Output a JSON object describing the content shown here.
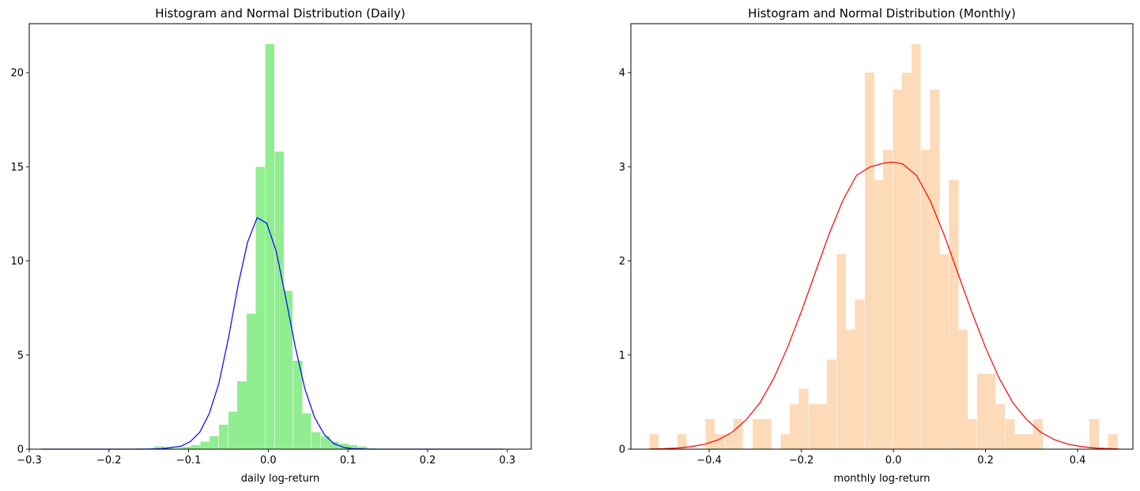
{
  "chart_data": [
    {
      "type": "histogram",
      "title": "Histogram and Normal Distribution (Daily)",
      "xlabel": "daily log-return",
      "ylabel": "",
      "xlim": [
        -0.3,
        0.33
      ],
      "ylim": [
        0,
        22.6
      ],
      "xticks": [
        -0.3,
        -0.2,
        -0.1,
        0.0,
        0.1,
        0.2,
        0.3
      ],
      "xtick_labels": [
        "−0.3",
        "−0.2",
        "−0.1",
        "0.0",
        "0.1",
        "0.2",
        "0.3"
      ],
      "yticks": [
        0,
        5,
        10,
        15,
        20
      ],
      "ytick_labels": [
        "0",
        "5",
        "10",
        "15",
        "20"
      ],
      "bar_color": "#90EE90",
      "curve_color": "#0000ff",
      "bins": {
        "width": 0.0116,
        "starts": [
          -0.166,
          -0.143,
          -0.131,
          -0.12,
          -0.108,
          -0.097,
          -0.085,
          -0.074,
          -0.062,
          -0.05,
          -0.039,
          -0.027,
          -0.016,
          -0.004,
          0.008,
          0.019,
          0.031,
          0.042,
          0.054,
          0.066,
          0.077,
          0.089,
          0.1,
          0.112,
          0.124
        ],
        "values": [
          0.05,
          0.15,
          0.05,
          0.05,
          0.12,
          0.2,
          0.4,
          0.7,
          1.3,
          2.0,
          3.6,
          7.2,
          15.0,
          21.5,
          15.8,
          8.4,
          4.7,
          1.9,
          0.9,
          0.7,
          0.4,
          0.3,
          0.2,
          0.15,
          0.05
        ]
      },
      "normal_curve": {
        "x": [
          -0.285,
          -0.26,
          -0.235,
          -0.21,
          -0.185,
          -0.16,
          -0.135,
          -0.11,
          -0.098,
          -0.086,
          -0.074,
          -0.062,
          -0.05,
          -0.038,
          -0.026,
          -0.014,
          -0.002,
          0.01,
          0.022,
          0.034,
          0.046,
          0.058,
          0.07,
          0.082,
          0.094,
          0.106,
          0.13,
          0.155,
          0.18,
          0.205,
          0.23,
          0.255,
          0.28,
          0.295
        ],
        "y": [
          0,
          0,
          0,
          0,
          0,
          0,
          0.02,
          0.15,
          0.4,
          0.9,
          1.9,
          3.5,
          5.9,
          8.7,
          11.0,
          12.3,
          12.0,
          10.5,
          8.0,
          5.4,
          3.2,
          1.7,
          0.8,
          0.3,
          0.1,
          0.03,
          0,
          0,
          0,
          0,
          0,
          0,
          0,
          0
        ]
      }
    },
    {
      "type": "histogram",
      "title": "Histogram and Normal Distribution (Monthly)",
      "xlabel": "monthly log-return",
      "ylabel": "",
      "xlim": [
        -0.57,
        0.52
      ],
      "ylim": [
        0,
        4.52
      ],
      "xticks": [
        -0.4,
        -0.2,
        0.0,
        0.2,
        0.4
      ],
      "xtick_labels": [
        "−0.4",
        "−0.2",
        "0.0",
        "0.2",
        "0.4"
      ],
      "yticks": [
        0,
        1,
        2,
        3,
        4
      ],
      "ytick_labels": [
        "0",
        "1",
        "2",
        "3",
        "4"
      ],
      "bar_color": "#FDDAB8",
      "curve_color": "#ff0000",
      "bins": {
        "width": 0.0203,
        "starts": [
          -0.53,
          -0.51,
          -0.489,
          -0.469,
          -0.449,
          -0.428,
          -0.408,
          -0.388,
          -0.367,
          -0.347,
          -0.327,
          -0.306,
          -0.286,
          -0.266,
          -0.245,
          -0.225,
          -0.205,
          -0.184,
          -0.164,
          -0.144,
          -0.123,
          -0.103,
          -0.083,
          -0.062,
          -0.042,
          -0.022,
          -0.001,
          0.019,
          0.039,
          0.06,
          0.08,
          0.1,
          0.121,
          0.141,
          0.161,
          0.182,
          0.202,
          0.222,
          0.243,
          0.263,
          0.283,
          0.304,
          0.324,
          0.344,
          0.365,
          0.385,
          0.405,
          0.426,
          0.446,
          0.466
        ],
        "values": [
          0.16,
          0,
          0,
          0.16,
          0,
          0,
          0.32,
          0.16,
          0.16,
          0.32,
          0,
          0.32,
          0.32,
          0,
          0.16,
          0.48,
          0.64,
          0.48,
          0.48,
          0.95,
          2.07,
          1.27,
          1.59,
          4.0,
          2.86,
          3.18,
          3.82,
          4.0,
          4.3,
          3.18,
          3.82,
          2.07,
          2.86,
          1.27,
          0.32,
          0.8,
          0.8,
          0.48,
          0.32,
          0.16,
          0.16,
          0.32,
          0,
          0,
          0,
          0,
          0,
          0.32,
          0,
          0.16
        ]
      },
      "normal_curve": {
        "x": [
          -0.53,
          -0.5,
          -0.47,
          -0.44,
          -0.41,
          -0.38,
          -0.35,
          -0.32,
          -0.29,
          -0.26,
          -0.23,
          -0.2,
          -0.17,
          -0.14,
          -0.11,
          -0.08,
          -0.05,
          -0.02,
          0.0,
          0.02,
          0.05,
          0.08,
          0.11,
          0.14,
          0.17,
          0.2,
          0.23,
          0.26,
          0.29,
          0.32,
          0.35,
          0.38,
          0.41,
          0.44,
          0.47,
          0.49
        ],
        "y": [
          0.002,
          0.005,
          0.012,
          0.026,
          0.052,
          0.1,
          0.18,
          0.31,
          0.49,
          0.75,
          1.08,
          1.46,
          1.87,
          2.28,
          2.64,
          2.91,
          3.0,
          3.04,
          3.05,
          3.03,
          2.91,
          2.64,
          2.28,
          1.87,
          1.46,
          1.08,
          0.75,
          0.49,
          0.31,
          0.18,
          0.1,
          0.052,
          0.026,
          0.012,
          0.005,
          0.002
        ]
      }
    }
  ]
}
